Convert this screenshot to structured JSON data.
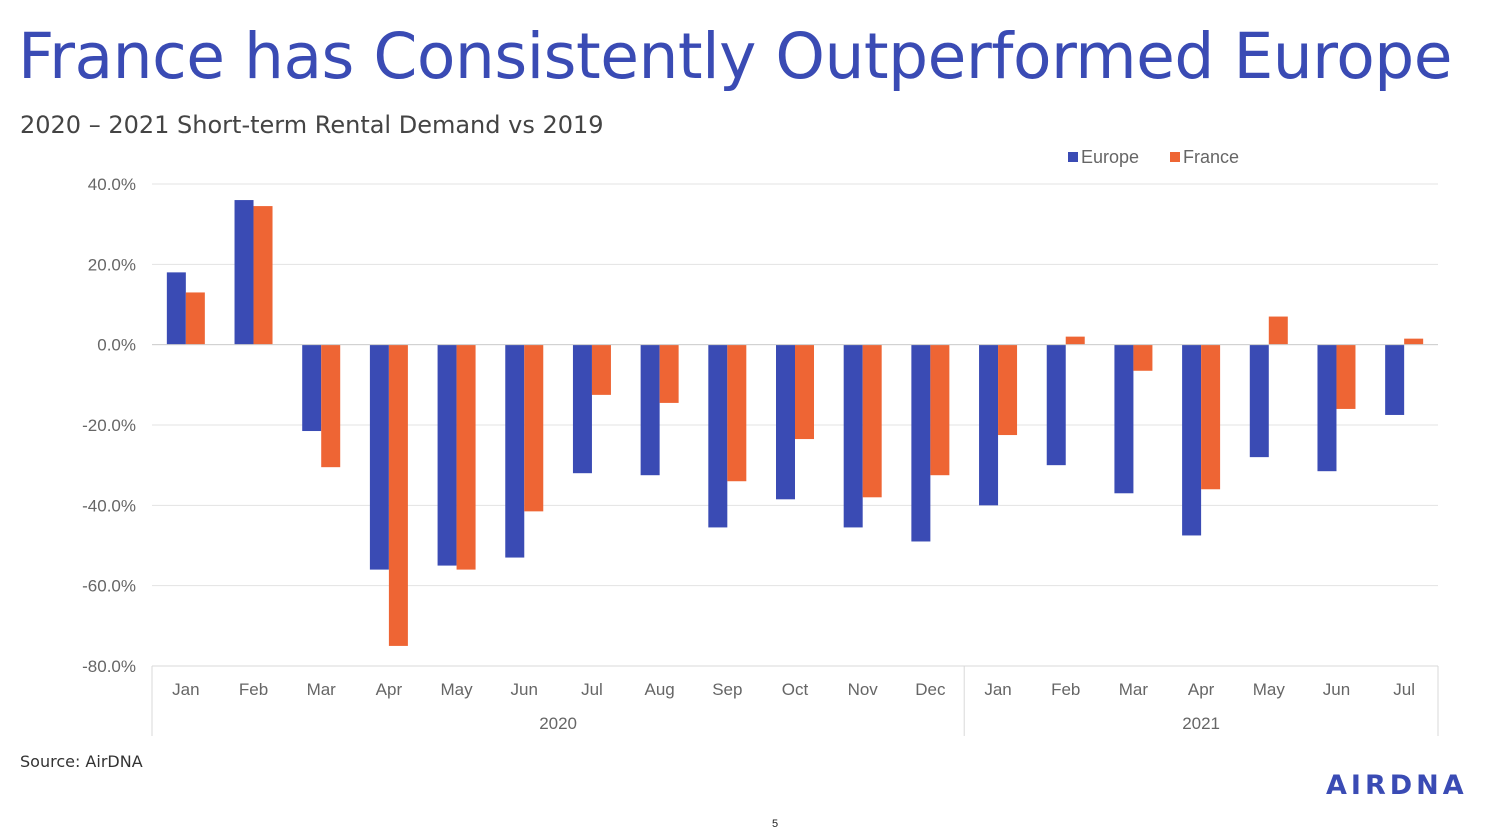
{
  "slide": {
    "title": "France has Consistently Outperformed Europe",
    "subtitle": "2020 – 2021 Short-term Rental Demand vs 2019",
    "source": "Source: AirDNA",
    "page_number": "5",
    "logo_text": "AIRDNA"
  },
  "colors": {
    "title": "#3a4bb4",
    "europe": "#3a4bb4",
    "france": "#ee6534"
  },
  "chart_data": {
    "type": "bar",
    "categories": [
      "Jan",
      "Feb",
      "Mar",
      "Apr",
      "May",
      "Jun",
      "Jul",
      "Aug",
      "Sep",
      "Oct",
      "Nov",
      "Dec",
      "Jan",
      "Feb",
      "Mar",
      "Apr",
      "May",
      "Jun",
      "Jul"
    ],
    "groups": [
      {
        "label": "2020",
        "count": 12
      },
      {
        "label": "2021",
        "count": 7
      }
    ],
    "series": [
      {
        "name": "Europe",
        "values": [
          18.0,
          36.0,
          -21.5,
          -56.0,
          -55.0,
          -53.0,
          -32.0,
          -32.5,
          -45.5,
          -38.5,
          -45.5,
          -49.0,
          -40.0,
          -30.0,
          -37.0,
          -47.5,
          -28.0,
          -31.5,
          -17.5
        ]
      },
      {
        "name": "France",
        "values": [
          13.0,
          34.5,
          -30.5,
          -75.0,
          -56.0,
          -41.5,
          -12.5,
          -14.5,
          -34.0,
          -23.5,
          -38.0,
          -32.5,
          -22.5,
          2.0,
          -6.5,
          -36.0,
          7.0,
          -16.0,
          1.5
        ]
      }
    ],
    "ylim": [
      -80,
      40
    ],
    "yticks": [
      {
        "value": 40,
        "label": "40.0%"
      },
      {
        "value": 20,
        "label": "20.0%"
      },
      {
        "value": 0,
        "label": "0.0%"
      },
      {
        "value": -20,
        "label": "-20.0%"
      },
      {
        "value": -40,
        "label": "-40.0%"
      },
      {
        "value": -60,
        "label": "-60.0%"
      },
      {
        "value": -80,
        "label": "-80.0%"
      }
    ],
    "grid": true,
    "legend_position": "top-right"
  }
}
